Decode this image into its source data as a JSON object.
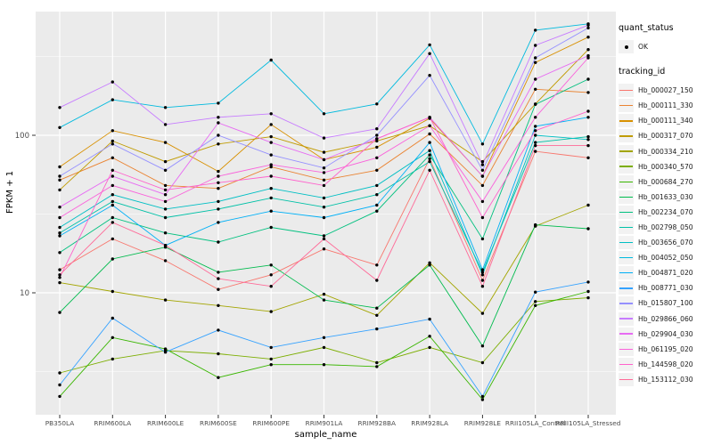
{
  "chart_data": {
    "type": "line",
    "xlabel": "sample_name",
    "ylabel": "FPKM + 1",
    "y_scale": "log10",
    "y_ticks": [
      10,
      100
    ],
    "y_minor_ticks": [
      3.162,
      31.623,
      316.228
    ],
    "ylim": [
      1.66,
      612
    ],
    "legend_position": "right",
    "grid": "on",
    "panel_bg": "#EBEBEB",
    "grid_color": "#FFFFFF",
    "tick_label_color": "#4D4D4D",
    "point_color": "#000000",
    "categories": [
      "PB350LA",
      "RRIM600LA",
      "RRIM600LE",
      "RRIM600SE",
      "RRIM600PE",
      "RRIM901LA",
      "RRIM928BA",
      "RRIM928LA",
      "RRIM928LE",
      "RRII105LA_Control",
      "RRII105LA_Stressed"
    ],
    "series": [
      {
        "name": "Hb_000027_150",
        "color": "#F8766D",
        "values": [
          14,
          22,
          16,
          10.5,
          13,
          19,
          15,
          71,
          12,
          79,
          72
        ]
      },
      {
        "name": "Hb_000111_330",
        "color": "#EA8331",
        "values": [
          52,
          72,
          48,
          46,
          63,
          52,
          60,
          102,
          48,
          196,
          187
        ]
      },
      {
        "name": "Hb_000111_340",
        "color": "#D89000",
        "values": [
          63,
          107,
          90,
          59,
          117,
          70,
          84,
          128,
          55,
          290,
          420
        ]
      },
      {
        "name": "Hb_000317_070",
        "color": "#C09B00",
        "values": [
          45,
          92,
          68,
          88,
          98,
          78,
          92,
          115,
          68,
          158,
          350
        ]
      },
      {
        "name": "Hb_000334_210",
        "color": "#A3A500",
        "values": [
          11.6,
          10.2,
          9,
          8.3,
          7.6,
          9.8,
          7.2,
          15.5,
          7.4,
          26.5,
          36
        ]
      },
      {
        "name": "Hb_000340_570",
        "color": "#7CAE00",
        "values": [
          3.1,
          3.8,
          4.3,
          4.1,
          3.8,
          4.5,
          3.6,
          4.5,
          3.6,
          8.8,
          9.3
        ]
      },
      {
        "name": "Hb_000684_270",
        "color": "#39B600",
        "values": [
          2.2,
          5.2,
          4.4,
          2.9,
          3.5,
          3.5,
          3.4,
          5.3,
          2.1,
          8.3,
          10.2
        ]
      },
      {
        "name": "Hb_001633_030",
        "color": "#00BB4E",
        "values": [
          7.5,
          16.4,
          19.5,
          13.5,
          15,
          9,
          8,
          15,
          4.6,
          27,
          25.5
        ]
      },
      {
        "name": "Hb_002234_070",
        "color": "#00C07F",
        "values": [
          18,
          30,
          24,
          21,
          26,
          23,
          33,
          75,
          22,
          157,
          227
        ]
      },
      {
        "name": "Hb_002798_050",
        "color": "#00C1A7",
        "values": [
          24,
          38,
          30,
          34,
          40,
          35,
          42,
          68,
          13.5,
          90,
          98
        ]
      },
      {
        "name": "Hb_003656_070",
        "color": "#00BFC4",
        "values": [
          26,
          42,
          34,
          38,
          46,
          40,
          48,
          80,
          13,
          100,
          94
        ]
      },
      {
        "name": "Hb_004052_050",
        "color": "#00BADE",
        "values": [
          112,
          168,
          150,
          160,
          300,
          137,
          158,
          375,
          88,
          465,
          510
        ]
      },
      {
        "name": "Hb_004871_020",
        "color": "#00B0F6",
        "values": [
          23,
          36,
          20,
          28,
          33,
          30,
          36,
          90,
          14,
          114,
          130
        ]
      },
      {
        "name": "Hb_008771_030",
        "color": "#35A2FF",
        "values": [
          2.6,
          6.9,
          4.2,
          5.8,
          4.5,
          5.2,
          5.9,
          6.8,
          2.2,
          10.1,
          11.7
        ]
      },
      {
        "name": "Hb_015807_100",
        "color": "#9590FF",
        "values": [
          55,
          88,
          60,
          100,
          75,
          62,
          100,
          240,
          60,
          310,
          480
        ]
      },
      {
        "name": "Hb_029866_060",
        "color": "#C77CFF",
        "values": [
          150,
          218,
          117,
          130,
          137,
          96,
          110,
          330,
          65,
          372,
          500
        ]
      },
      {
        "name": "Hb_029904_030",
        "color": "#E76BF3",
        "values": [
          35,
          55,
          42,
          120,
          90,
          70,
          95,
          130,
          55,
          227,
          320
        ]
      },
      {
        "name": "Hb_061195_020",
        "color": "#FA62DB",
        "values": [
          30,
          48,
          38,
          55,
          65,
          58,
          72,
          115,
          38,
          130,
          310
        ]
      },
      {
        "name": "Hb_144598_020",
        "color": "#FF61CC",
        "values": [
          12.5,
          60,
          45,
          50,
          55,
          48,
          95,
          130,
          30,
          107,
          142
        ]
      },
      {
        "name": "Hb_153112_030",
        "color": "#FF6A98",
        "values": [
          13,
          28,
          20,
          12.3,
          11,
          22,
          12,
          60,
          11,
          86,
          86
        ]
      }
    ]
  },
  "legend": {
    "quant_status_title": "quant_status",
    "quant_status_items": [
      "OK"
    ],
    "tracking_id_title": "tracking_id"
  }
}
